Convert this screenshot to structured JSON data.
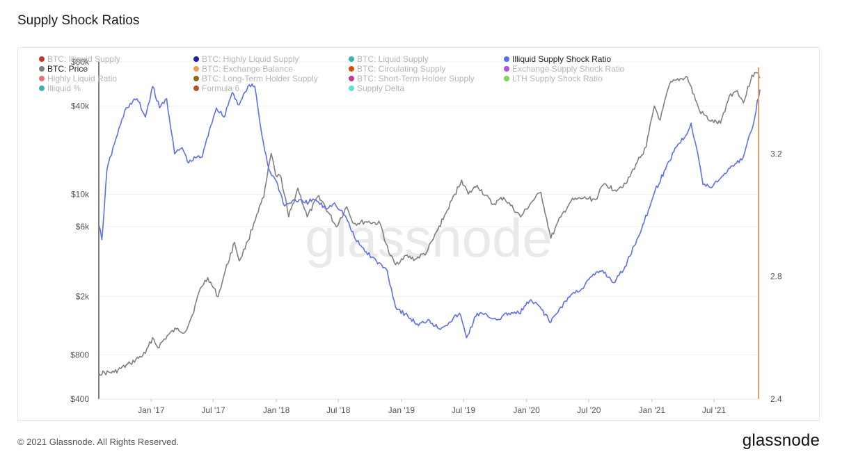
{
  "header": {
    "title": "Supply Shock Ratios"
  },
  "footer": {
    "copyright": "© 2021 Glassnode. All Rights Reserved.",
    "logo_text": "glassnode"
  },
  "watermark": "glassnode",
  "colors": {
    "price": "#7f7f7f",
    "ratio": "#5b6ef0",
    "axis_right": "#f59a5a",
    "grid": "#efefef"
  },
  "chart_data": {
    "type": "line",
    "title": "Supply Shock Ratios",
    "legend": [
      {
        "label": "BTC: Illiquid Supply",
        "color": "#c0392b",
        "active": false
      },
      {
        "label": "BTC: Highly Liquid Supply",
        "color": "#1f1fae",
        "active": false
      },
      {
        "label": "BTC: Liquid Supply",
        "color": "#3cb4b4",
        "active": false
      },
      {
        "label": "Illiquid Supply Shock Ratio",
        "color": "#5b6ef0",
        "active": true
      },
      {
        "label": "BTC: Price",
        "color": "#7f7f7f",
        "active": true
      },
      {
        "label": "BTC: Exchange Balance",
        "color": "#f59a5a",
        "active": false
      },
      {
        "label": "BTC: Circulating Supply",
        "color": "#d35400",
        "active": false
      },
      {
        "label": "Exchange Supply Shock Ratio",
        "color": "#b34fe0",
        "active": false
      },
      {
        "label": "Highly Liquid Ratio",
        "color": "#e57373",
        "active": false
      },
      {
        "label": "BTC: Long-Term Holder Supply",
        "color": "#8b6914",
        "active": false
      },
      {
        "label": "BTC: Short-Term Holder Supply",
        "color": "#c2389b",
        "active": false
      },
      {
        "label": "LTH Supply Shock Ratio",
        "color": "#7ed957",
        "active": false
      },
      {
        "label": "Illiquid %",
        "color": "#3cb4b4",
        "active": false
      },
      {
        "label": "Formula 6",
        "color": "#b5542a",
        "active": false
      },
      {
        "label": "Supply Delta",
        "color": "#5ce0d8",
        "active": false
      }
    ],
    "x_ticks": [
      {
        "label": "Jan '17",
        "date": "2017-01-01"
      },
      {
        "label": "Jul '17",
        "date": "2017-07-01"
      },
      {
        "label": "Jan '18",
        "date": "2018-01-01"
      },
      {
        "label": "Jul '18",
        "date": "2018-07-01"
      },
      {
        "label": "Jan '19",
        "date": "2019-01-01"
      },
      {
        "label": "Jul '19",
        "date": "2019-07-01"
      },
      {
        "label": "Jan '20",
        "date": "2020-01-01"
      },
      {
        "label": "Jul '20",
        "date": "2020-07-01"
      },
      {
        "label": "Jan '21",
        "date": "2021-01-01"
      },
      {
        "label": "Jul '21",
        "date": "2021-07-01"
      }
    ],
    "x_range": [
      "2016-08-01",
      "2021-11-08"
    ],
    "y_left": {
      "scale": "log",
      "range": [
        400,
        80000
      ],
      "ticks": [
        {
          "label": "$400",
          "value": 400
        },
        {
          "label": "$800",
          "value": 800
        },
        {
          "label": "$2k",
          "value": 2000
        },
        {
          "label": "$6k",
          "value": 6000
        },
        {
          "label": "$10k",
          "value": 10000
        },
        {
          "label": "$40k",
          "value": 40000
        },
        {
          "label": "$80k",
          "value": 80000
        }
      ]
    },
    "y_right": {
      "scale": "linear",
      "range": [
        2.4,
        3.5
      ],
      "ticks": [
        {
          "label": "2.4",
          "value": 2.4
        },
        {
          "label": "2.8",
          "value": 2.8
        },
        {
          "label": "3.2",
          "value": 3.2
        }
      ]
    },
    "series": [
      {
        "name": "BTC: Price",
        "axis": "left",
        "color": "#7f7f7f",
        "points": [
          [
            "2016-08-01",
            600
          ],
          [
            "2016-09-15",
            610
          ],
          [
            "2016-11-01",
            700
          ],
          [
            "2016-12-15",
            820
          ],
          [
            "2017-01-05",
            1050
          ],
          [
            "2017-01-20",
            900
          ],
          [
            "2017-02-20",
            1100
          ],
          [
            "2017-03-15",
            1200
          ],
          [
            "2017-04-10",
            1150
          ],
          [
            "2017-05-01",
            1500
          ],
          [
            "2017-05-25",
            2300
          ],
          [
            "2017-06-15",
            2700
          ],
          [
            "2017-07-15",
            2000
          ],
          [
            "2017-08-05",
            3000
          ],
          [
            "2017-09-01",
            4700
          ],
          [
            "2017-09-15",
            3500
          ],
          [
            "2017-10-10",
            4800
          ],
          [
            "2017-11-05",
            7300
          ],
          [
            "2017-11-25",
            9500
          ],
          [
            "2017-12-17",
            19000
          ],
          [
            "2017-12-30",
            13500
          ],
          [
            "2018-01-15",
            13000
          ],
          [
            "2018-02-06",
            7000
          ],
          [
            "2018-03-05",
            11000
          ],
          [
            "2018-04-01",
            7000
          ],
          [
            "2018-05-05",
            9800
          ],
          [
            "2018-06-25",
            6000
          ],
          [
            "2018-07-25",
            8200
          ],
          [
            "2018-08-15",
            6300
          ],
          [
            "2018-09-20",
            6500
          ],
          [
            "2018-10-31",
            6300
          ],
          [
            "2018-11-25",
            4000
          ],
          [
            "2018-12-15",
            3300
          ],
          [
            "2019-01-10",
            3800
          ],
          [
            "2019-02-10",
            3600
          ],
          [
            "2019-03-15",
            4000
          ],
          [
            "2019-04-05",
            5000
          ],
          [
            "2019-05-15",
            7800
          ],
          [
            "2019-06-26",
            12500
          ],
          [
            "2019-07-15",
            10000
          ],
          [
            "2019-08-10",
            11500
          ],
          [
            "2019-09-25",
            8500
          ],
          [
            "2019-10-26",
            9500
          ],
          [
            "2019-12-15",
            7000
          ],
          [
            "2020-01-15",
            8800
          ],
          [
            "2020-02-12",
            10300
          ],
          [
            "2020-03-12",
            5000
          ],
          [
            "2020-04-10",
            7000
          ],
          [
            "2020-05-10",
            9000
          ],
          [
            "2020-06-15",
            9400
          ],
          [
            "2020-07-20",
            9200
          ],
          [
            "2020-08-15",
            11800
          ],
          [
            "2020-09-15",
            10700
          ],
          [
            "2020-10-20",
            12000
          ],
          [
            "2020-11-15",
            16000
          ],
          [
            "2020-12-15",
            21000
          ],
          [
            "2021-01-08",
            40000
          ],
          [
            "2021-01-25",
            32000
          ],
          [
            "2021-02-21",
            56000
          ],
          [
            "2021-03-13",
            60000
          ],
          [
            "2021-04-14",
            63000
          ],
          [
            "2021-05-20",
            37000
          ],
          [
            "2021-06-22",
            31500
          ],
          [
            "2021-07-20",
            30500
          ],
          [
            "2021-08-15",
            47000
          ],
          [
            "2021-09-07",
            51000
          ],
          [
            "2021-09-25",
            42000
          ],
          [
            "2021-10-20",
            65000
          ],
          [
            "2021-11-08",
            67000
          ],
          [
            "2021-11-12",
            62000
          ]
        ]
      },
      {
        "name": "Illiquid Supply Shock Ratio",
        "axis": "right",
        "color": "#5b6ef0",
        "points": [
          [
            "2016-08-01",
            2.97
          ],
          [
            "2016-08-10",
            2.92
          ],
          [
            "2016-08-25",
            3.15
          ],
          [
            "2016-09-20",
            3.25
          ],
          [
            "2016-10-20",
            3.35
          ],
          [
            "2016-11-20",
            3.38
          ],
          [
            "2016-12-15",
            3.32
          ],
          [
            "2017-01-05",
            3.42
          ],
          [
            "2017-01-25",
            3.35
          ],
          [
            "2017-02-15",
            3.38
          ],
          [
            "2017-03-10",
            3.2
          ],
          [
            "2017-04-01",
            3.22
          ],
          [
            "2017-04-20",
            3.17
          ],
          [
            "2017-05-15",
            3.19
          ],
          [
            "2017-05-30",
            3.19
          ],
          [
            "2017-06-20",
            3.28
          ],
          [
            "2017-07-10",
            3.35
          ],
          [
            "2017-08-01",
            3.32
          ],
          [
            "2017-08-25",
            3.4
          ],
          [
            "2017-09-15",
            3.36
          ],
          [
            "2017-10-10",
            3.42
          ],
          [
            "2017-10-30",
            3.42
          ],
          [
            "2017-11-20",
            3.26
          ],
          [
            "2017-12-10",
            3.15
          ],
          [
            "2018-01-05",
            3.1
          ],
          [
            "2018-01-25",
            3.03
          ],
          [
            "2018-02-25",
            3.05
          ],
          [
            "2018-03-25",
            3.04
          ],
          [
            "2018-04-25",
            3.05
          ],
          [
            "2018-05-25",
            3.02
          ],
          [
            "2018-06-20",
            3.04
          ],
          [
            "2018-07-20",
            3.0
          ],
          [
            "2018-08-20",
            2.92
          ],
          [
            "2018-09-20",
            2.88
          ],
          [
            "2018-10-20",
            2.85
          ],
          [
            "2018-11-20",
            2.82
          ],
          [
            "2018-12-15",
            2.7
          ],
          [
            "2019-01-20",
            2.67
          ],
          [
            "2019-02-20",
            2.64
          ],
          [
            "2019-03-20",
            2.66
          ],
          [
            "2019-04-20",
            2.63
          ],
          [
            "2019-05-20",
            2.65
          ],
          [
            "2019-06-20",
            2.68
          ],
          [
            "2019-07-10",
            2.6
          ],
          [
            "2019-08-10",
            2.68
          ],
          [
            "2019-09-10",
            2.67
          ],
          [
            "2019-10-10",
            2.66
          ],
          [
            "2019-11-10",
            2.68
          ],
          [
            "2019-12-10",
            2.68
          ],
          [
            "2020-01-10",
            2.72
          ],
          [
            "2020-02-10",
            2.7
          ],
          [
            "2020-03-12",
            2.65
          ],
          [
            "2020-04-10",
            2.7
          ],
          [
            "2020-05-10",
            2.74
          ],
          [
            "2020-06-10",
            2.76
          ],
          [
            "2020-07-10",
            2.8
          ],
          [
            "2020-08-10",
            2.82
          ],
          [
            "2020-09-10",
            2.78
          ],
          [
            "2020-10-10",
            2.82
          ],
          [
            "2020-11-10",
            2.9
          ],
          [
            "2020-12-10",
            2.98
          ],
          [
            "2021-01-10",
            3.08
          ],
          [
            "2021-02-10",
            3.15
          ],
          [
            "2021-03-10",
            3.22
          ],
          [
            "2021-04-10",
            3.26
          ],
          [
            "2021-04-25",
            3.3
          ],
          [
            "2021-05-15",
            3.2
          ],
          [
            "2021-05-30",
            3.1
          ],
          [
            "2021-06-20",
            3.09
          ],
          [
            "2021-07-20",
            3.12
          ],
          [
            "2021-08-20",
            3.16
          ],
          [
            "2021-09-20",
            3.18
          ],
          [
            "2021-10-20",
            3.28
          ],
          [
            "2021-11-12",
            3.41
          ]
        ]
      }
    ],
    "highlight_axis_color": "#f59a5a",
    "grid": true
  }
}
